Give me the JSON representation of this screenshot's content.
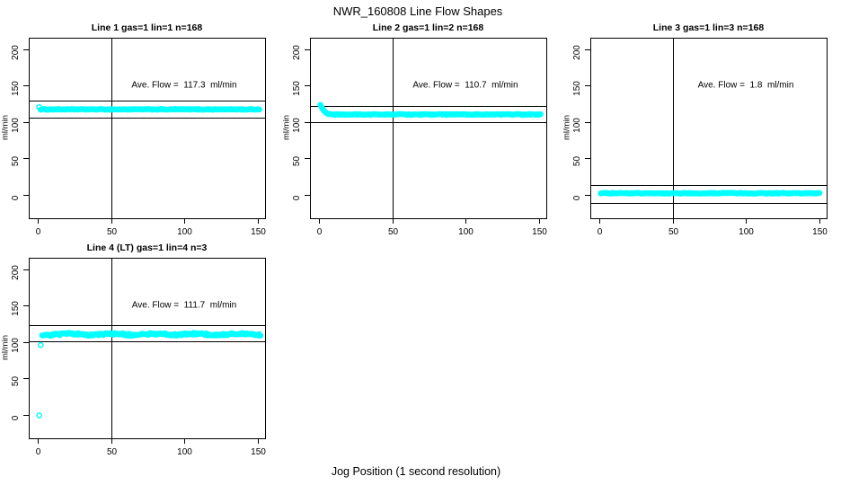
{
  "figure": {
    "title": "NWR_160808  Line Flow Shapes",
    "xlabel": "Jog Position (1 second resolution)"
  },
  "colors": {
    "points": "#00ffff",
    "axis": "#000000",
    "text": "#000000",
    "background": "#ffffff"
  },
  "chart_data": [
    {
      "type": "scatter",
      "title": "Line 1 gas=1 lin=1 n=168",
      "annotation": "Ave. Flow =  117.3  ml/min",
      "ave_flow_ml_min": 117.3,
      "gas": 1,
      "lin": 1,
      "n": 168,
      "ylabel": "ml/min",
      "x_ticks": [
        "0",
        "50",
        "100",
        "150"
      ],
      "y_ticks": [
        "0",
        "50",
        "100",
        "150",
        "200"
      ],
      "xlim": [
        -6,
        155
      ],
      "ylim": [
        -33,
        216
      ],
      "grid": false,
      "legend": null,
      "vline_x": 50,
      "hlines": [
        129.0,
        105.6
      ],
      "lead_points": [
        [
          1,
          120.5
        ]
      ],
      "lead_connect": false,
      "band": {
        "x_start": 2,
        "x_end": 151,
        "step": 1,
        "level": 117.4,
        "noise": 0.55,
        "wiggle": 0
      },
      "annotation_xy": [
        100,
        150
      ]
    },
    {
      "type": "scatter",
      "title": "Line 2 gas=1 lin=2 n=168",
      "annotation": "Ave. Flow =  110.7  ml/min",
      "ave_flow_ml_min": 110.7,
      "gas": 1,
      "lin": 2,
      "n": 168,
      "ylabel": "ml/min",
      "x_ticks": [
        "0",
        "50",
        "100",
        "150"
      ],
      "y_ticks": [
        "0",
        "50",
        "100",
        "150",
        "200"
      ],
      "xlim": [
        -6,
        155
      ],
      "ylim": [
        -33,
        216
      ],
      "grid": false,
      "legend": null,
      "vline_x": 50,
      "hlines": [
        121.8,
        99.6
      ],
      "lead_points": [
        [
          1,
          123.5
        ],
        [
          1.8,
          120.5
        ],
        [
          2.6,
          117.8
        ],
        [
          3.4,
          115.6
        ],
        [
          4.2,
          113.8
        ],
        [
          5,
          112.5
        ],
        [
          5.8,
          111.6
        ],
        [
          6.6,
          111.0
        ]
      ],
      "lead_connect": true,
      "band": {
        "x_start": 7,
        "x_end": 151,
        "step": 1,
        "level": 110.4,
        "noise": 0.6,
        "wiggle": 0
      },
      "annotation_xy": [
        100,
        150
      ]
    },
    {
      "type": "scatter",
      "title": "Line 3 gas=1 lin=3 n=168",
      "annotation": "Ave. Flow =  1.8  ml/min",
      "ave_flow_ml_min": 1.8,
      "gas": 1,
      "lin": 3,
      "n": 168,
      "ylabel": "ml/min",
      "x_ticks": [
        "0",
        "50",
        "100",
        "150"
      ],
      "y_ticks": [
        "0",
        "50",
        "100",
        "150",
        "200"
      ],
      "xlim": [
        -6,
        155
      ],
      "ylim": [
        -33,
        216
      ],
      "grid": false,
      "legend": null,
      "vline_x": 50,
      "hlines": [
        13.8,
        -11.0
      ],
      "lead_points": [],
      "lead_connect": false,
      "band": {
        "x_start": 1,
        "x_end": 150,
        "step": 1,
        "level": 1.9,
        "noise": 0.55,
        "wiggle": 0
      },
      "annotation_xy": [
        100,
        150
      ]
    },
    {
      "type": "scatter",
      "title": "Line 4 (LT) gas=1 lin=4 n=3",
      "annotation": "Ave. Flow =  111.7  ml/min",
      "ave_flow_ml_min": 111.7,
      "gas": 1,
      "lin": 4,
      "n": 3,
      "ylabel": "ml/min",
      "x_ticks": [
        "0",
        "50",
        "100",
        "150"
      ],
      "y_ticks": [
        "0",
        "50",
        "100",
        "150",
        "200"
      ],
      "xlim": [
        -6,
        155
      ],
      "ylim": [
        -33,
        216
      ],
      "grid": false,
      "legend": null,
      "vline_x": 50,
      "hlines": [
        122.9,
        100.5
      ],
      "lead_points": [
        [
          1,
          -1
        ],
        [
          2,
          96
        ]
      ],
      "lead_connect": false,
      "band": {
        "x_start": 3,
        "x_end": 152,
        "step": 0.8,
        "level": 110.7,
        "noise": 1.3,
        "wiggle": 1.0
      },
      "annotation_xy": [
        100,
        150
      ]
    }
  ]
}
